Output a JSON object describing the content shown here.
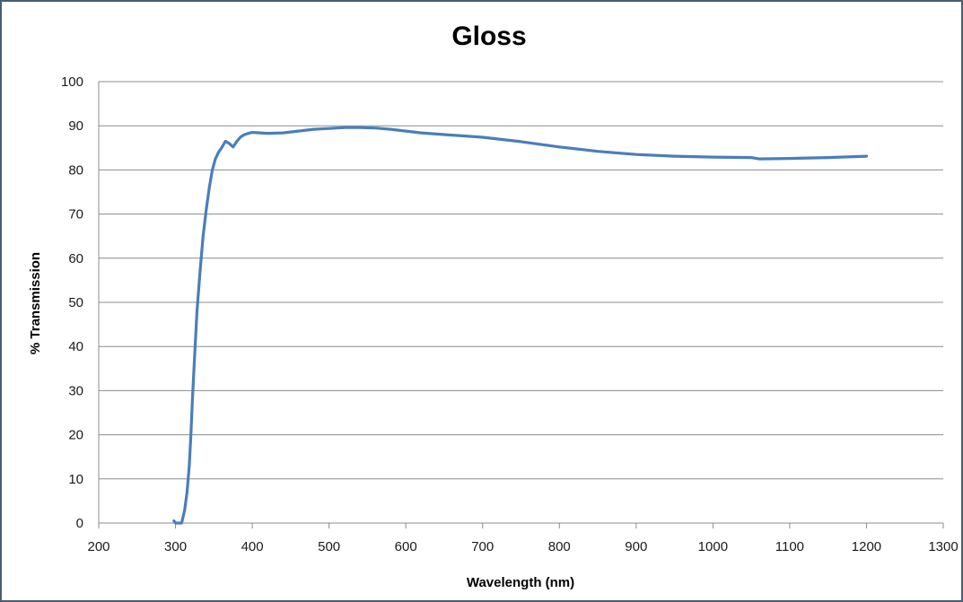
{
  "chart_data": {
    "type": "line",
    "title": "Gloss",
    "xlabel": "Wavelength (nm)",
    "ylabel": "% Transmission",
    "xlim": [
      200,
      1300
    ],
    "ylim": [
      0,
      100
    ],
    "x_ticks": [
      "200",
      "300",
      "400",
      "500",
      "600",
      "700",
      "800",
      "900",
      "1000",
      "1100",
      "1200",
      "1300"
    ],
    "y_ticks": [
      "0",
      "10",
      "20",
      "30",
      "40",
      "50",
      "60",
      "70",
      "80",
      "90",
      "100"
    ],
    "grid": "horizontal",
    "legend": "none",
    "series": [
      {
        "color": "#4a7ebb",
        "points": [
          [
            298,
            0.5
          ],
          [
            300,
            0
          ],
          [
            305,
            0
          ],
          [
            308,
            0
          ],
          [
            312,
            3
          ],
          [
            315,
            7
          ],
          [
            318,
            13
          ],
          [
            320,
            20
          ],
          [
            322,
            28
          ],
          [
            325,
            38
          ],
          [
            328,
            48
          ],
          [
            332,
            57
          ],
          [
            336,
            65
          ],
          [
            340,
            71
          ],
          [
            344,
            76
          ],
          [
            348,
            80
          ],
          [
            352,
            82.5
          ],
          [
            356,
            84
          ],
          [
            360,
            85
          ],
          [
            365,
            86.5
          ],
          [
            370,
            86
          ],
          [
            375,
            85.2
          ],
          [
            380,
            86.5
          ],
          [
            385,
            87.5
          ],
          [
            390,
            88
          ],
          [
            395,
            88.3
          ],
          [
            400,
            88.5
          ],
          [
            420,
            88.3
          ],
          [
            440,
            88.4
          ],
          [
            460,
            88.8
          ],
          [
            480,
            89.2
          ],
          [
            500,
            89.4
          ],
          [
            520,
            89.6
          ],
          [
            540,
            89.6
          ],
          [
            560,
            89.5
          ],
          [
            580,
            89.2
          ],
          [
            600,
            88.8
          ],
          [
            620,
            88.4
          ],
          [
            650,
            88
          ],
          [
            700,
            87.4
          ],
          [
            750,
            86.4
          ],
          [
            800,
            85.2
          ],
          [
            850,
            84.2
          ],
          [
            900,
            83.5
          ],
          [
            950,
            83.1
          ],
          [
            1000,
            82.9
          ],
          [
            1050,
            82.8
          ],
          [
            1060,
            82.5
          ],
          [
            1100,
            82.6
          ],
          [
            1150,
            82.8
          ],
          [
            1200,
            83.1
          ]
        ]
      }
    ]
  }
}
